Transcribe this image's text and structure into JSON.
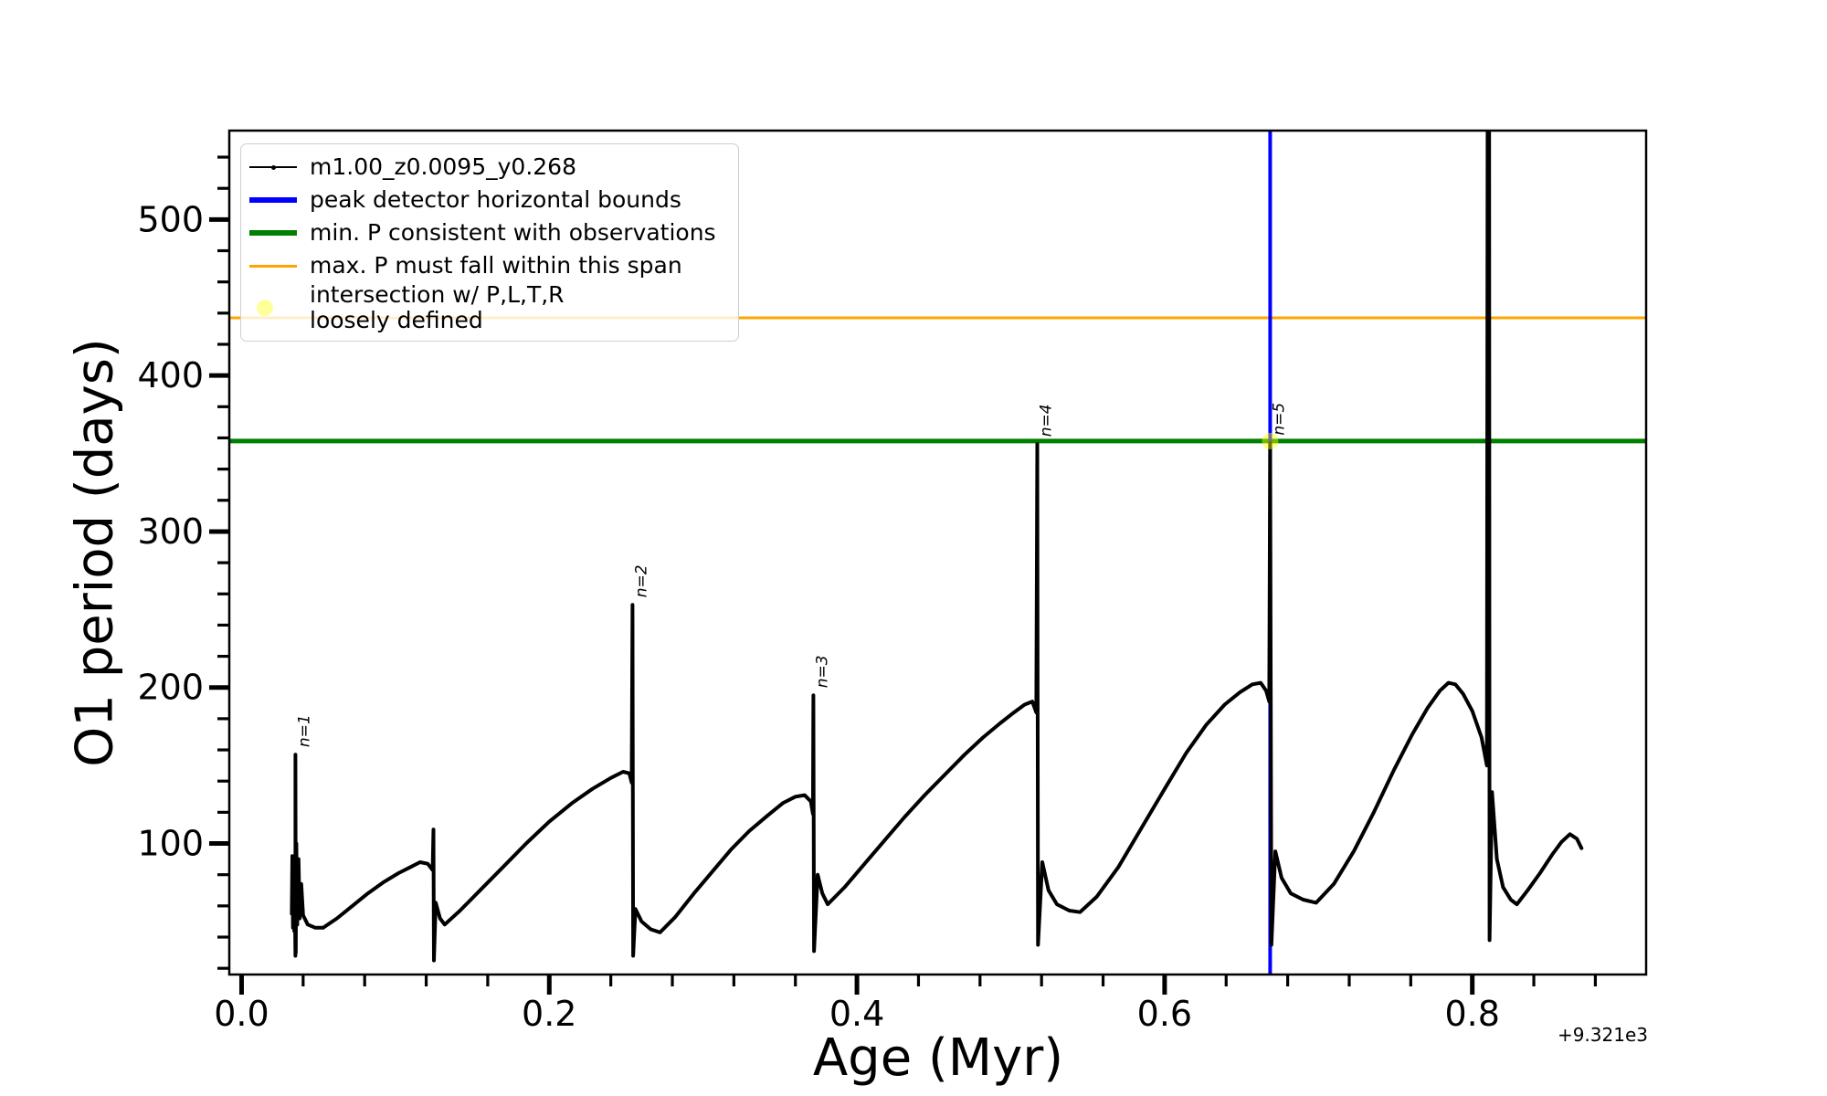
{
  "figure": {
    "background": "#ffffff"
  },
  "axes": {
    "xlabel": "Age (Myr)",
    "ylabel": "O1 period (days)",
    "x_offset_text": "+9.321e3",
    "x_tick_labels": [
      "0.0",
      "0.2",
      "0.4",
      "0.6",
      "0.8"
    ],
    "y_tick_labels": [
      "100",
      "200",
      "300",
      "400",
      "500"
    ]
  },
  "legend": {
    "items": [
      {
        "label": "m1.00_z0.0095_y0.268",
        "swatch": "line-with-dot-marker",
        "color": "#000000"
      },
      {
        "label": "peak detector horizontal bounds",
        "swatch": "thick-line",
        "color": "#0000ff"
      },
      {
        "label": "min. P consistent with observations",
        "swatch": "thick-line",
        "color": "#008000"
      },
      {
        "label": "max. P must fall within this span",
        "swatch": "medium-line",
        "color": "#ffa500"
      },
      {
        "label": "intersection w/ P,L,T,R\nloosely defined",
        "swatch": "circle",
        "color": "rgba(255,255,0,0.4)"
      }
    ]
  },
  "chart_data": {
    "type": "line",
    "title": "",
    "xlabel": "Age (Myr)",
    "ylabel": "O1 period (days)",
    "x_offset": "+9.321e3",
    "xlim": [
      -0.008,
      0.913
    ],
    "ylim": [
      16,
      557
    ],
    "grid": false,
    "legend_position": "upper left",
    "x_major_ticks": [
      0.0,
      0.2,
      0.4,
      0.6,
      0.8
    ],
    "x_minor_tick_step": 0.04,
    "y_major_ticks": [
      100,
      200,
      300,
      400,
      500
    ],
    "y_minor_tick_step": 20,
    "series": [
      {
        "name": "m1.00_z0.0095_y0.268",
        "color": "#000000",
        "linewidth": 4,
        "points": [
          [
            0.0326,
            55
          ],
          [
            0.033,
            92
          ],
          [
            0.0334,
            46
          ],
          [
            0.0338,
            88
          ],
          [
            0.0342,
            44
          ],
          [
            0.0346,
            82
          ],
          [
            0.0349,
            38
          ],
          [
            0.035,
            28
          ],
          [
            0.035,
            157
          ],
          [
            0.0352,
            30
          ],
          [
            0.0356,
            100
          ],
          [
            0.0362,
            48
          ],
          [
            0.037,
            90
          ],
          [
            0.0378,
            52
          ],
          [
            0.0388,
            74
          ],
          [
            0.04,
            54
          ],
          [
            0.043,
            48
          ],
          [
            0.048,
            46
          ],
          [
            0.053,
            46
          ],
          [
            0.062,
            52
          ],
          [
            0.072,
            60
          ],
          [
            0.082,
            68
          ],
          [
            0.092,
            75
          ],
          [
            0.102,
            81
          ],
          [
            0.11,
            85
          ],
          [
            0.116,
            88
          ],
          [
            0.121,
            87
          ],
          [
            0.1242,
            83
          ],
          [
            0.1247,
            109
          ],
          [
            0.125,
            25
          ],
          [
            0.1262,
            62
          ],
          [
            0.129,
            52
          ],
          [
            0.132,
            48
          ],
          [
            0.142,
            57
          ],
          [
            0.155,
            70
          ],
          [
            0.17,
            85
          ],
          [
            0.185,
            100
          ],
          [
            0.2,
            114
          ],
          [
            0.215,
            126
          ],
          [
            0.228,
            135
          ],
          [
            0.24,
            142
          ],
          [
            0.248,
            146
          ],
          [
            0.252,
            145
          ],
          [
            0.2536,
            139
          ],
          [
            0.2541,
            253
          ],
          [
            0.2545,
            28
          ],
          [
            0.256,
            58
          ],
          [
            0.26,
            50
          ],
          [
            0.266,
            45
          ],
          [
            0.272,
            43
          ],
          [
            0.282,
            53
          ],
          [
            0.294,
            68
          ],
          [
            0.306,
            82
          ],
          [
            0.318,
            96
          ],
          [
            0.33,
            108
          ],
          [
            0.342,
            118
          ],
          [
            0.352,
            126
          ],
          [
            0.36,
            130
          ],
          [
            0.366,
            131
          ],
          [
            0.37,
            127
          ],
          [
            0.3714,
            119
          ],
          [
            0.3717,
            195
          ],
          [
            0.3721,
            31
          ],
          [
            0.3745,
            80
          ],
          [
            0.3775,
            68
          ],
          [
            0.381,
            61
          ],
          [
            0.392,
            72
          ],
          [
            0.405,
            87
          ],
          [
            0.418,
            102
          ],
          [
            0.431,
            117
          ],
          [
            0.444,
            131
          ],
          [
            0.457,
            144
          ],
          [
            0.47,
            157
          ],
          [
            0.482,
            168
          ],
          [
            0.493,
            177
          ],
          [
            0.502,
            184
          ],
          [
            0.509,
            189
          ],
          [
            0.514,
            191
          ],
          [
            0.5166,
            184
          ],
          [
            0.5172,
            356
          ],
          [
            0.5177,
            35
          ],
          [
            0.5205,
            88
          ],
          [
            0.5245,
            70
          ],
          [
            0.53,
            61
          ],
          [
            0.538,
            57
          ],
          [
            0.545,
            56
          ],
          [
            0.556,
            66
          ],
          [
            0.57,
            85
          ],
          [
            0.585,
            110
          ],
          [
            0.6,
            135
          ],
          [
            0.614,
            158
          ],
          [
            0.627,
            176
          ],
          [
            0.639,
            189
          ],
          [
            0.649,
            197
          ],
          [
            0.657,
            202
          ],
          [
            0.6625,
            203
          ],
          [
            0.666,
            198
          ],
          [
            0.668,
            191
          ],
          [
            0.6686,
            357
          ],
          [
            0.6694,
            35
          ],
          [
            0.672,
            95
          ],
          [
            0.676,
            78
          ],
          [
            0.682,
            68
          ],
          [
            0.69,
            64
          ],
          [
            0.6985,
            62
          ],
          [
            0.71,
            74
          ],
          [
            0.723,
            95
          ],
          [
            0.736,
            120
          ],
          [
            0.749,
            147
          ],
          [
            0.761,
            170
          ],
          [
            0.771,
            187
          ],
          [
            0.779,
            198
          ],
          [
            0.7845,
            203
          ],
          [
            0.789,
            202
          ],
          [
            0.794,
            196
          ],
          [
            0.8,
            185
          ],
          [
            0.806,
            168
          ],
          [
            0.8095,
            150
          ],
          [
            0.8106,
            1200
          ],
          [
            0.8112,
            38
          ],
          [
            0.8128,
            133
          ],
          [
            0.816,
            90
          ],
          [
            0.82,
            72
          ],
          [
            0.825,
            64
          ],
          [
            0.829,
            61
          ],
          [
            0.836,
            70
          ],
          [
            0.844,
            81
          ],
          [
            0.852,
            93
          ],
          [
            0.858,
            101
          ],
          [
            0.8635,
            106
          ],
          [
            0.868,
            103
          ],
          [
            0.871,
            97
          ]
        ]
      }
    ],
    "horizontal_lines": [
      {
        "name": "max. P must fall within this span",
        "y": 437,
        "color": "#ffa500",
        "linewidth": 3
      },
      {
        "name": "min. P consistent with observations",
        "y": 358,
        "color": "#008000",
        "linewidth": 5
      }
    ],
    "vertical_lines": [
      {
        "name": "peak detector horizontal bounds",
        "x": 0.6686,
        "color": "#0000ff",
        "linewidth": 4
      }
    ],
    "intersection_marker": {
      "name": "intersection w/ P,L,T,R loosely defined",
      "x": 0.6686,
      "y": 358,
      "color": "#ffff00",
      "alpha": 0.45,
      "radius": 9
    },
    "pulse_labels": [
      {
        "text": "n=1",
        "x": 0.035,
        "y": 157
      },
      {
        "text": "n=2",
        "x": 0.2541,
        "y": 253
      },
      {
        "text": "n=3",
        "x": 0.3717,
        "y": 195
      },
      {
        "text": "n=4",
        "x": 0.5172,
        "y": 356
      },
      {
        "text": "n=5",
        "x": 0.6686,
        "y": 357
      }
    ],
    "clipped_spike_x": 0.8112
  }
}
